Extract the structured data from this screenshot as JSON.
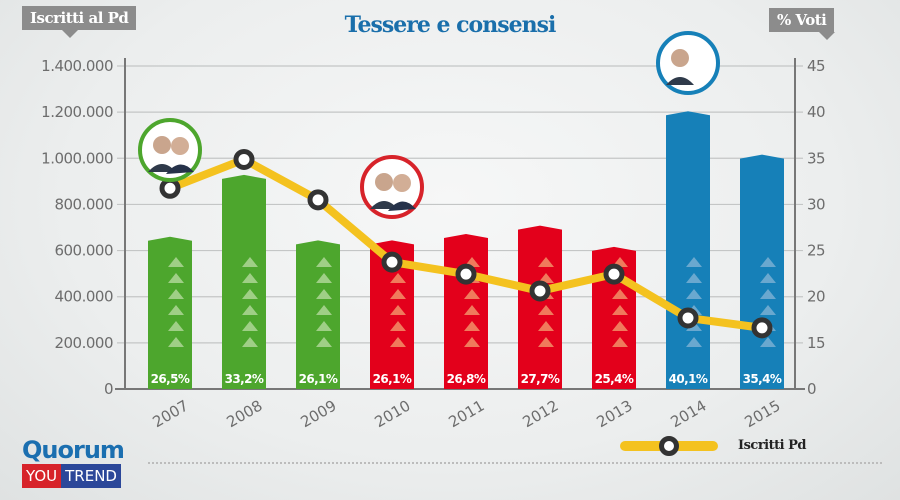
{
  "chart_data": {
    "type": "bar+line",
    "title": "Tessere e consensi",
    "left_axis_label": "Iscritti al Pd",
    "right_axis_label": "% Voti",
    "categories": [
      "2007",
      "2008",
      "2009",
      "2010",
      "2011",
      "2012",
      "2013",
      "2014",
      "2015"
    ],
    "left_ticks": [
      "0",
      "200.000",
      "400.000",
      "600.000",
      "800.000",
      "1.000.000",
      "1.200.000",
      "1.400.000"
    ],
    "left_ylim": [
      0,
      1400000
    ],
    "right_ticks": [
      "0",
      "15",
      "20",
      "25",
      "30",
      "35",
      "40",
      "45"
    ],
    "right_tick_values": [
      0,
      15,
      20,
      25,
      30,
      35,
      40,
      45
    ],
    "bar_series": {
      "name": "% Voti",
      "values": [
        26.5,
        33.2,
        26.1,
        26.1,
        26.8,
        27.7,
        25.4,
        40.1,
        35.4
      ],
      "labels": [
        "26,5%",
        "33,2%",
        "26,1%",
        "26,1%",
        "26,8%",
        "27,7%",
        "25,4%",
        "40,1%",
        "35,4%"
      ],
      "colors": [
        "#4da62d",
        "#4da62d",
        "#4da62d",
        "#e3001b",
        "#e3001b",
        "#e3001b",
        "#e3001b",
        "#1680b8",
        "#1680b8"
      ]
    },
    "line_series": {
      "name": "Iscritti Pd",
      "values": [
        870000,
        995000,
        820000,
        550000,
        498000,
        425000,
        498000,
        308000,
        265000
      ],
      "color": "#f4c21f"
    },
    "grid": true,
    "legend": "bottom-right",
    "portrait_markers": [
      {
        "year_index": 0,
        "color": "#4da62d",
        "icon": "portrait-icon"
      },
      {
        "year_index": 3,
        "color": "#d7232a",
        "icon": "portrait-icon"
      },
      {
        "year_index": 7,
        "color": "#1680b8",
        "icon": "portrait-icon"
      }
    ]
  },
  "logo": {
    "quorum": "Quorum",
    "you": "YOU",
    "trend": "TREND"
  },
  "legend": {
    "label": "Iscritti Pd"
  }
}
